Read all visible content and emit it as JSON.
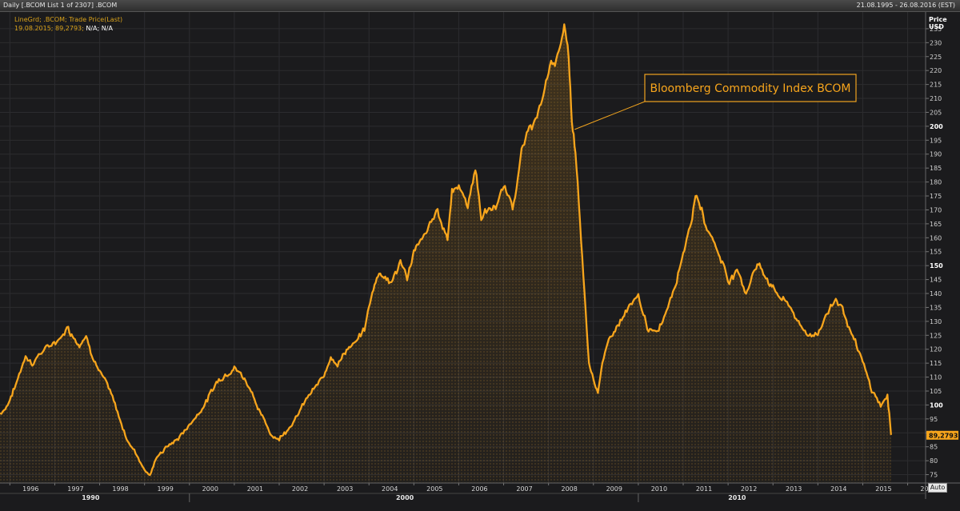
{
  "window": {
    "title": "Daily [.BCOM List 1 of 2307] .BCOM",
    "range": "21.08.1995 - 26.08.2016 (EST)"
  },
  "legend": {
    "line1": "LineGrd; .BCOM; Trade Price(Last)",
    "line2_value": "19.08.2015; 89,2793;",
    "line2_na": "N/A; N/A"
  },
  "controls": {
    "auto_label": "Auto"
  },
  "colors": {
    "line": "#f7a51c",
    "fill": "#e2a23a",
    "grid": "#2c2c2f",
    "background": "#1b1b1d",
    "tag_bg": "#f7a51c"
  },
  "chart_data": {
    "type": "area",
    "title": "",
    "annotation": "Bloomberg Commodity Index BCOM",
    "yaxis_label": "Price",
    "yaxis_unit": "USD",
    "ylim": [
      72,
      241
    ],
    "yticks": [
      75,
      80,
      85,
      90,
      95,
      100,
      105,
      110,
      115,
      120,
      125,
      130,
      135,
      140,
      145,
      150,
      155,
      160,
      165,
      170,
      175,
      180,
      185,
      190,
      195,
      200,
      205,
      210,
      215,
      220,
      225,
      230,
      235
    ],
    "xlim": [
      1995.78,
      2016.4
    ],
    "xticks": [
      "1996",
      "1997",
      "1998",
      "1999",
      "2000",
      "2001",
      "2002",
      "2003",
      "2004",
      "2005",
      "2006",
      "2007",
      "2008",
      "2009",
      "2010",
      "2011",
      "2012",
      "2013",
      "2014",
      "2015",
      "2016"
    ],
    "decade_labels": [
      "1990",
      "2000",
      "2010"
    ],
    "last_value_label": "89,2793",
    "last_value": 89.2793,
    "series": [
      {
        "x": [
          1995.78,
          1995.9,
          1996.0,
          1996.15,
          1996.35,
          1996.5,
          1996.7,
          1996.9,
          1997.1,
          1997.3,
          1997.4,
          1997.55,
          1997.7,
          1997.85,
          1998.0,
          1998.2,
          1998.4,
          1998.6,
          1998.8,
          1999.0,
          1999.12,
          1999.3,
          1999.5,
          1999.75,
          2000.0,
          2000.2,
          2000.4,
          2000.6,
          2000.85,
          2001.0,
          2001.2,
          2001.4,
          2001.55,
          2001.7,
          2001.85,
          2002.0,
          2002.2,
          2002.4,
          2002.6,
          2002.8,
          2003.0,
          2003.15,
          2003.3,
          2003.5,
          2003.7,
          2003.9,
          2004.0,
          2004.15,
          2004.25,
          2004.5,
          2004.7,
          2004.85,
          2005.0,
          2005.15,
          2005.3,
          2005.5,
          2005.75,
          2005.85,
          2006.0,
          2006.2,
          2006.37,
          2006.5,
          2006.7,
          2006.85,
          2007.0,
          2007.2,
          2007.4,
          2007.6,
          2007.8,
          2008.0,
          2008.2,
          2008.35,
          2008.45,
          2008.52,
          2008.6,
          2008.7,
          2008.8,
          2008.9,
          2009.0,
          2009.1,
          2009.2,
          2009.4,
          2009.6,
          2009.8,
          2010.0,
          2010.2,
          2010.4,
          2010.6,
          2010.8,
          2011.0,
          2011.15,
          2011.3,
          2011.5,
          2011.7,
          2011.9,
          2012.0,
          2012.2,
          2012.4,
          2012.55,
          2012.7,
          2012.9,
          2013.0,
          2013.2,
          2013.4,
          2013.6,
          2013.8,
          2014.0,
          2014.2,
          2014.4,
          2014.55,
          2014.75,
          2015.0,
          2015.2,
          2015.4,
          2015.55,
          2015.63
        ],
        "y": [
          97,
          99,
          102,
          108,
          118,
          115,
          119,
          121,
          124,
          128,
          125,
          122,
          125,
          118,
          112,
          106,
          97,
          88,
          83,
          77,
          75,
          82,
          85,
          88,
          93,
          97,
          102,
          108,
          112,
          114,
          110,
          105,
          98,
          93,
          89,
          88,
          92,
          96,
          102,
          106,
          110,
          118,
          115,
          120,
          122,
          127,
          135,
          145,
          148,
          144,
          151,
          146,
          155,
          158,
          162,
          170,
          160,
          178,
          178,
          172,
          185,
          168,
          170,
          172,
          178,
          172,
          190,
          200,
          205,
          220,
          226,
          235,
          225,
          200,
          190,
          165,
          140,
          115,
          110,
          105,
          115,
          125,
          130,
          135,
          138,
          128,
          125,
          133,
          143,
          155,
          165,
          175,
          165,
          158,
          150,
          145,
          148,
          140,
          148,
          150,
          145,
          142,
          138,
          135,
          128,
          125,
          126,
          133,
          138,
          135,
          125,
          115,
          105,
          100,
          103,
          89.28
        ]
      }
    ]
  }
}
